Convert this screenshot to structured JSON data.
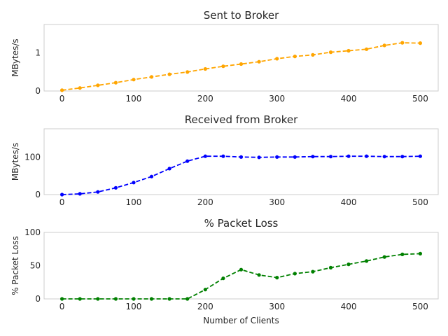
{
  "chart_data": [
    {
      "type": "line",
      "title": "Sent to Broker",
      "xlabel": "",
      "ylabel": "MBytes/s",
      "xlim": [
        -25,
        525
      ],
      "ylim": [
        0,
        1.75
      ],
      "xticks": [
        0,
        100,
        200,
        300,
        400,
        500
      ],
      "yticks": [
        0,
        1
      ],
      "color": "#ffa500",
      "x": [
        0,
        25,
        50,
        75,
        100,
        125,
        150,
        175,
        200,
        225,
        250,
        275,
        300,
        325,
        350,
        375,
        400,
        425,
        450,
        475,
        500
      ],
      "y": [
        0.02,
        0.08,
        0.15,
        0.22,
        0.3,
        0.37,
        0.44,
        0.5,
        0.58,
        0.65,
        0.71,
        0.77,
        0.85,
        0.91,
        0.95,
        1.02,
        1.06,
        1.1,
        1.2,
        1.27,
        1.26
      ],
      "grid": false
    },
    {
      "type": "line",
      "title": "Received from Broker",
      "xlabel": "",
      "ylabel": "MBytes/s",
      "xlim": [
        -25,
        525
      ],
      "ylim": [
        0,
        175
      ],
      "xticks": [
        0,
        100,
        200,
        300,
        400,
        500
      ],
      "yticks": [
        0,
        100
      ],
      "color": "#0000ff",
      "x": [
        0,
        25,
        50,
        75,
        100,
        125,
        150,
        175,
        200,
        225,
        250,
        275,
        300,
        325,
        350,
        375,
        400,
        425,
        450,
        475,
        500
      ],
      "y": [
        0,
        2,
        7,
        18,
        32,
        48,
        69,
        89,
        102,
        102,
        100,
        99,
        100,
        100,
        101,
        101,
        102,
        102,
        101,
        101,
        102
      ],
      "grid": false
    },
    {
      "type": "line",
      "title": "% Packet Loss",
      "xlabel": "Number of Clients",
      "ylabel": "% Packet Loss",
      "xlim": [
        -25,
        525
      ],
      "ylim": [
        0,
        100
      ],
      "xticks": [
        0,
        100,
        200,
        300,
        400,
        500
      ],
      "yticks": [
        0,
        50,
        100
      ],
      "color": "#008000",
      "x": [
        0,
        25,
        50,
        75,
        100,
        125,
        150,
        175,
        200,
        225,
        250,
        275,
        300,
        325,
        350,
        375,
        400,
        425,
        450,
        475,
        500
      ],
      "y": [
        0,
        0,
        0,
        0,
        0,
        0,
        0,
        0,
        14,
        31,
        44,
        36,
        32,
        38,
        41,
        47,
        52,
        57,
        63,
        67,
        68
      ],
      "grid": false
    }
  ]
}
